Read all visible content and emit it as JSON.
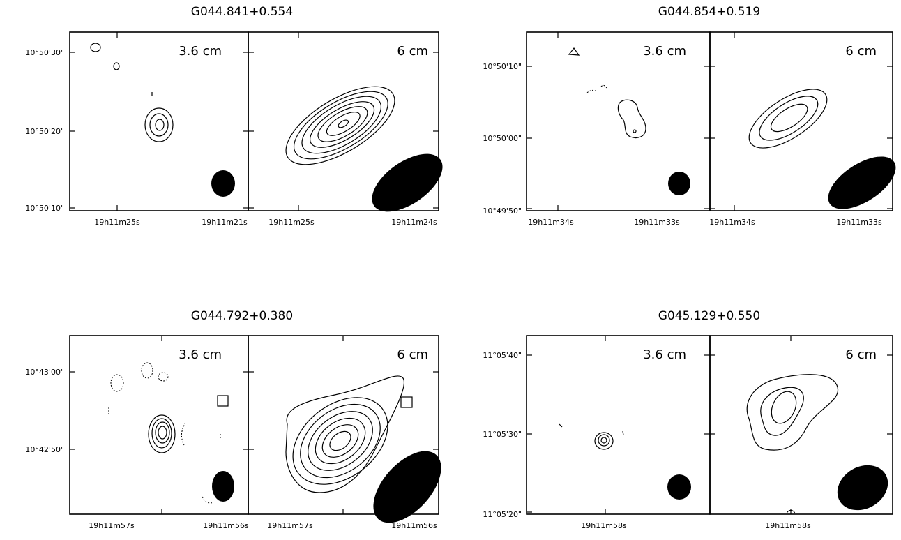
{
  "chart_data": [
    {
      "type": "contour",
      "title": "G044.841+0.554",
      "panels": [
        {
          "label": "3.6 cm"
        },
        {
          "label": "6 cm"
        }
      ],
      "y_ticks": [
        "10°50'30\"",
        "10°50'20\"",
        "10°50'10\""
      ],
      "x_ticks_left": [
        "19h11m25s",
        "19h11m21s"
      ],
      "x_ticks_right": [
        "19h11m25s",
        "19h11m24s"
      ]
    },
    {
      "type": "contour",
      "title": "G044.854+0.519",
      "panels": [
        {
          "label": "3.6 cm"
        },
        {
          "label": "6 cm"
        }
      ],
      "y_ticks": [
        "10°50'10\"",
        "10°50'00\"",
        "10°49'50\""
      ],
      "x_ticks_left": [
        "19h11m34s",
        "19h11m33s"
      ],
      "x_ticks_right": [
        "19h11m34s",
        "19h11m33s"
      ]
    },
    {
      "type": "contour",
      "title": "G044.792+0.380",
      "panels": [
        {
          "label": "3.6 cm"
        },
        {
          "label": "6 cm"
        }
      ],
      "y_ticks": [
        "10°43'00\"",
        "10°42'50\""
      ],
      "x_ticks_left": [
        "19h11m57s",
        "19h11m56s"
      ],
      "x_ticks_right": [
        "19h11m57s",
        "19h11m56s"
      ]
    },
    {
      "type": "contour",
      "title": "G045.129+0.550",
      "panels": [
        {
          "label": "3.6 cm"
        },
        {
          "label": "6 cm"
        }
      ],
      "y_ticks": [
        "11°05'40\"",
        "11°05'30\"",
        "11°05'20\""
      ],
      "x_ticks_left": [
        "19h11m58s"
      ],
      "x_ticks_right": [
        "19h11m58s"
      ]
    }
  ]
}
